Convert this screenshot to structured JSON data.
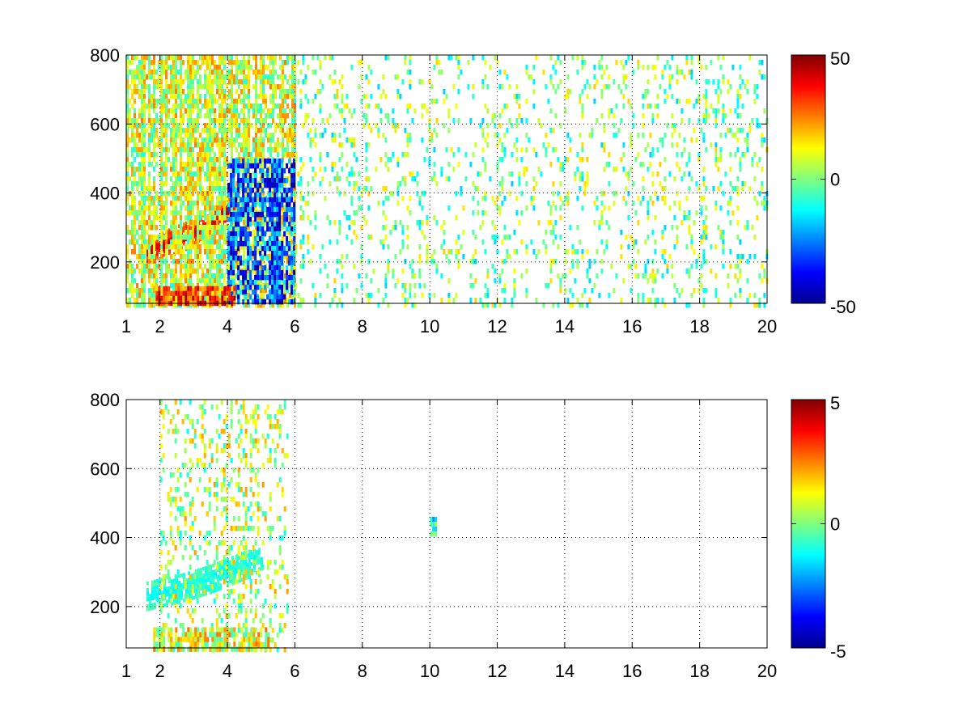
{
  "chart_data": [
    {
      "type": "heatmap",
      "title": "",
      "xlabel": "",
      "ylabel": "",
      "xlim": [
        1,
        20
      ],
      "ylim": [
        80,
        800
      ],
      "x_ticks": [
        1,
        2,
        4,
        6,
        8,
        10,
        12,
        14,
        16,
        18,
        20
      ],
      "y_ticks": [
        200,
        400,
        600,
        800
      ],
      "grid": true,
      "colormap": "jet",
      "colorbar": {
        "min": -50,
        "max": 50,
        "ticks": [
          -50,
          0,
          50
        ]
      },
      "features": [
        {
          "kind": "ridge",
          "x": [
            1.6,
            2.0,
            2.5,
            3.0,
            3.5,
            4.0,
            4.3
          ],
          "y": [
            230,
            245,
            265,
            285,
            310,
            345,
            390
          ],
          "value": 40
        },
        {
          "kind": "region",
          "x": [
            1.0,
            6.0
          ],
          "y": [
            80,
            800
          ],
          "value": 8,
          "density": 0.85
        },
        {
          "kind": "region",
          "x": [
            4.0,
            6.0
          ],
          "y": [
            80,
            500
          ],
          "value": -30,
          "density": 0.8
        },
        {
          "kind": "region",
          "x": [
            1.8,
            4.2
          ],
          "y": [
            80,
            130
          ],
          "value": 30,
          "density": 0.9
        },
        {
          "kind": "region",
          "x": [
            6.0,
            20.0
          ],
          "y": [
            80,
            800
          ],
          "value": 0,
          "density": 0.18
        }
      ]
    },
    {
      "type": "heatmap",
      "title": "",
      "xlabel": "",
      "ylabel": "",
      "xlim": [
        1,
        20
      ],
      "ylim": [
        80,
        800
      ],
      "x_ticks": [
        1,
        2,
        4,
        6,
        8,
        10,
        12,
        14,
        16,
        18,
        20
      ],
      "y_ticks": [
        200,
        400,
        600,
        800
      ],
      "grid": true,
      "colormap": "jet",
      "colorbar": {
        "min": -5,
        "max": 5,
        "ticks": [
          -5,
          0,
          5
        ]
      },
      "features": [
        {
          "kind": "ridge",
          "x": [
            1.6,
            2.0,
            2.5,
            3.0,
            3.5,
            4.0,
            4.5,
            5.0
          ],
          "y": [
            230,
            240,
            250,
            265,
            280,
            300,
            320,
            330
          ],
          "value": -1
        },
        {
          "kind": "region",
          "x": [
            2.0,
            5.8
          ],
          "y": [
            80,
            800
          ],
          "value": 0.5,
          "density": 0.3
        },
        {
          "kind": "region",
          "x": [
            1.8,
            5.2
          ],
          "y": [
            80,
            140
          ],
          "value": 1,
          "density": 0.85
        },
        {
          "kind": "region",
          "x": [
            10.0,
            10.2
          ],
          "y": [
            410,
            460
          ],
          "value": -1,
          "density": 1.0
        }
      ]
    }
  ]
}
